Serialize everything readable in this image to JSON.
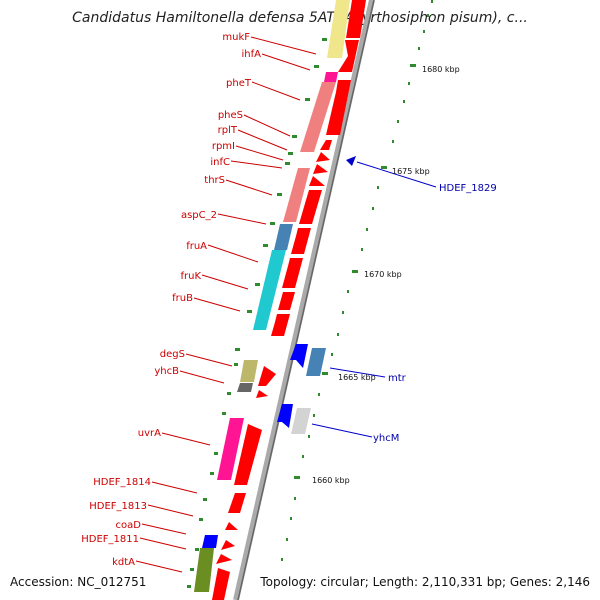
{
  "title": "Candidatus Hamiltonella defensa 5AT (Acyrthosiphon pisum), c...",
  "footer": {
    "accession": "Accession: NC_012751",
    "summary": "Topology: circular; Length: 2,110,331 bp; Genes: 2,146"
  },
  "scale_labels": [
    "1680 kbp",
    "1675 kbp",
    "1670 kbp",
    "1665 kbp",
    "1660 kbp"
  ],
  "left_genes": [
    {
      "name": "mukF",
      "color": "#cc0000"
    },
    {
      "name": "ihfA",
      "color": "#cc0000"
    },
    {
      "name": "pheT",
      "color": "#cc0000"
    },
    {
      "name": "pheS",
      "color": "#cc0000"
    },
    {
      "name": "rplT",
      "color": "#cc0000"
    },
    {
      "name": "rpmI",
      "color": "#cc0000"
    },
    {
      "name": "infC",
      "color": "#cc0000"
    },
    {
      "name": "thrS",
      "color": "#cc0000"
    },
    {
      "name": "aspC_2",
      "color": "#cc0000"
    },
    {
      "name": "fruA",
      "color": "#cc0000"
    },
    {
      "name": "fruK",
      "color": "#cc0000"
    },
    {
      "name": "fruB",
      "color": "#cc0000"
    },
    {
      "name": "degS",
      "color": "#cc0000"
    },
    {
      "name": "yhcB",
      "color": "#cc0000"
    },
    {
      "name": "uvrA",
      "color": "#cc0000"
    },
    {
      "name": "HDEF_1814",
      "color": "#cc0000"
    },
    {
      "name": "HDEF_1813",
      "color": "#cc0000"
    },
    {
      "name": "coaD",
      "color": "#cc0000"
    },
    {
      "name": "HDEF_1811",
      "color": "#cc0000"
    },
    {
      "name": "kdtA",
      "color": "#cc0000"
    }
  ],
  "right_genes": [
    {
      "name": "HDEF_1829",
      "color": "#0000aa"
    },
    {
      "name": "mtr",
      "color": "#0000aa"
    },
    {
      "name": "yhcM",
      "color": "#0000aa"
    }
  ]
}
